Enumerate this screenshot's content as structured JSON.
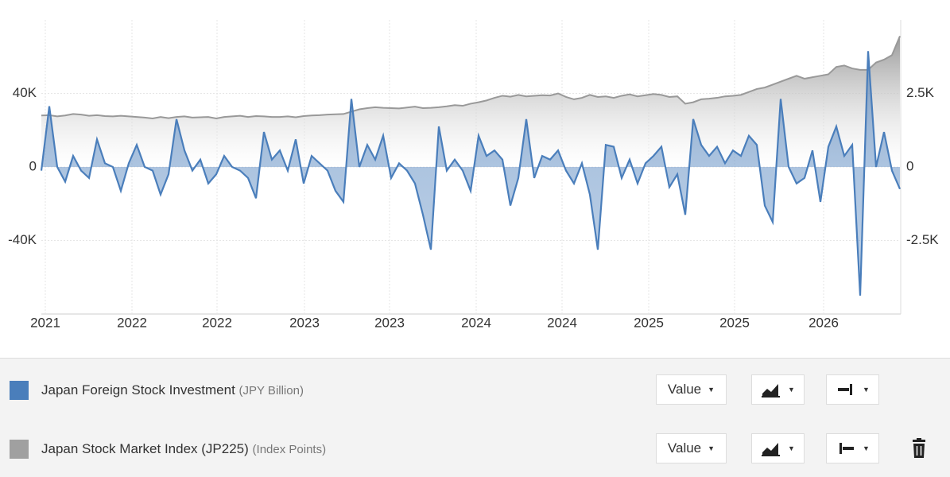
{
  "chart_data": {
    "type": "area",
    "xlim": [
      0,
      108
    ],
    "xticks": [
      {
        "value": 0.5,
        "label": "2021"
      },
      {
        "value": 11.4,
        "label": "2022"
      },
      {
        "value": 22.1,
        "label": "2022"
      },
      {
        "value": 33.1,
        "label": "2023"
      },
      {
        "value": 43.8,
        "label": "2023"
      },
      {
        "value": 54.7,
        "label": "2024"
      },
      {
        "value": 65.5,
        "label": "2024"
      },
      {
        "value": 76.4,
        "label": "2025"
      },
      {
        "value": 87.2,
        "label": "2025"
      },
      {
        "value": 98.4,
        "label": "2026"
      }
    ],
    "ylim": [
      -80000,
      80000
    ],
    "yticks": [
      {
        "value": -40000,
        "label": "-40K"
      },
      0,
      {
        "value": 40000,
        "label": "40K"
      }
    ],
    "y2lim": [
      -5000,
      5000
    ],
    "y2ticks": [
      {
        "value": -2500,
        "label": "-2.5K"
      },
      0,
      {
        "value": 2500,
        "label": "2.5K"
      }
    ],
    "grid": true,
    "series": [
      {
        "name": "Japan Foreign Stock Investment",
        "unit": "(JPY Billion)",
        "control": "Value",
        "color": "#4a7ebb",
        "axis": "y",
        "values": [
          -2000,
          33000,
          0,
          -8000,
          6000,
          -2000,
          -6000,
          15000,
          2000,
          0,
          -13000,
          2000,
          12000,
          0,
          -2000,
          -15000,
          -4000,
          26000,
          9000,
          -2000,
          4000,
          -9000,
          -4000,
          6000,
          0,
          -2000,
          -6000,
          -17000,
          19000,
          4000,
          9000,
          -2000,
          15000,
          -9000,
          6000,
          2000,
          -2000,
          -13000,
          -19000,
          37000,
          0,
          12000,
          4000,
          17000,
          -6000,
          2000,
          -2000,
          -9000,
          -26000,
          -45000,
          22000,
          -2000,
          4000,
          -2000,
          -13000,
          17000,
          6000,
          9000,
          4000,
          -21000,
          -6000,
          26000,
          -6000,
          6000,
          4000,
          9000,
          -2000,
          -9000,
          2000,
          -15000,
          -45000,
          12000,
          11000,
          -6000,
          4000,
          -9000,
          2000,
          6000,
          11000,
          -11000,
          -4000,
          -26000,
          26000,
          12000,
          6000,
          11000,
          2000,
          9000,
          6000,
          17000,
          12000,
          -21000,
          -30000,
          37000,
          0,
          -9000,
          -6000,
          9000,
          -19000,
          11000,
          22000,
          6000,
          12000,
          -70000,
          63000,
          0,
          19000,
          -2000,
          -12000
        ]
      },
      {
        "name": "Japan Stock Market Index (JP225)",
        "unit": "(Index Points)",
        "control": "Value",
        "color": "#a0a0a0",
        "axis": "y2",
        "values": [
          1750,
          1760,
          1720,
          1750,
          1800,
          1780,
          1740,
          1760,
          1730,
          1720,
          1740,
          1720,
          1700,
          1680,
          1650,
          1700,
          1660,
          1700,
          1720,
          1680,
          1690,
          1700,
          1650,
          1700,
          1720,
          1740,
          1700,
          1730,
          1720,
          1700,
          1700,
          1720,
          1690,
          1730,
          1750,
          1760,
          1780,
          1790,
          1800,
          1880,
          1960,
          2000,
          2030,
          2010,
          2000,
          1990,
          2020,
          2050,
          2000,
          2010,
          2030,
          2060,
          2100,
          2080,
          2150,
          2200,
          2260,
          2350,
          2420,
          2390,
          2450,
          2400,
          2420,
          2440,
          2430,
          2500,
          2380,
          2300,
          2350,
          2450,
          2380,
          2400,
          2350,
          2420,
          2470,
          2400,
          2440,
          2480,
          2450,
          2380,
          2400,
          2150,
          2200,
          2300,
          2320,
          2350,
          2400,
          2420,
          2450,
          2550,
          2650,
          2700,
          2800,
          2900,
          3000,
          3100,
          3000,
          3050,
          3100,
          3150,
          3400,
          3450,
          3350,
          3300,
          3300,
          3550,
          3650,
          3800,
          4450
        ]
      }
    ]
  }
}
